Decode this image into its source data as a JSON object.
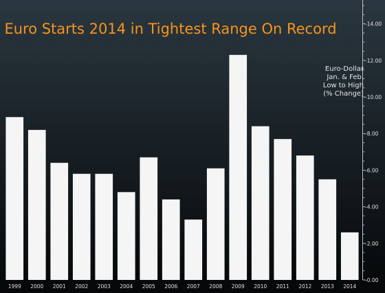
{
  "chart_data": {
    "type": "bar",
    "title": "Euro Starts 2014 in Tightest Range On Record",
    "annotation": [
      "Euro-Dollar",
      "Jan. & Feb.",
      "Low to High",
      "(% Change)"
    ],
    "categories": [
      "1999",
      "2000",
      "2001",
      "2002",
      "2003",
      "2004",
      "2005",
      "2006",
      "2007",
      "2008",
      "2009",
      "2010",
      "2011",
      "2012",
      "2013",
      "2014"
    ],
    "values": [
      8.9,
      8.2,
      6.4,
      5.8,
      5.8,
      4.8,
      6.7,
      4.4,
      3.3,
      6.1,
      12.3,
      8.4,
      7.7,
      6.8,
      5.5,
      2.6
    ],
    "y_ticks": [
      "0.00",
      "2.00",
      "4.00",
      "6.00",
      "8.00",
      "10.00",
      "12.00",
      "14.00"
    ],
    "ylim": [
      0,
      15.3
    ],
    "grid": false,
    "y_axis_side": "right",
    "colors": {
      "background_top": "#2a3740",
      "background_bottom": "#050708",
      "bar": "#f5f5f5",
      "title": "#f7941d",
      "text": "#e0e0e0"
    }
  }
}
